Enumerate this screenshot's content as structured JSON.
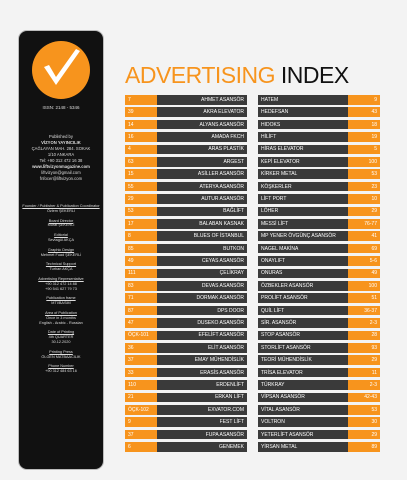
{
  "sidebar": {
    "issn": "ISSN: 2148 - 5346",
    "publisher": [
      "Published by",
      "VİZYON YAYINCILIK",
      "ÇAĞLAYAN MAH. 284. SOKAK",
      "1/10 ANKARA",
      "Tel: +90 312 472 16 38",
      "www.liftvizyonmagazine.com",
      "liftvizyon@gmail.com",
      "fnfocer@liftvizyon.com"
    ],
    "roles": [
      {
        "title": "Founder / Publisher & Publication Coordinator",
        "lines": [
          "Özlem ŞEKERLİ"
        ]
      },
      {
        "title": "Board Director",
        "lines": [
          "Murat ŞEKERLİ"
        ]
      },
      {
        "title": "Editorial",
        "lines": [
          "Sevtagül AKÇA"
        ]
      },
      {
        "title": "Graphic Design",
        "lines": [
          "Mehmet Fuad ŞEKERLİ"
        ]
      },
      {
        "title": "Technical Support",
        "lines": [
          "Turhan AKÇA"
        ]
      },
      {
        "title": "Advertising Representative",
        "lines": [
          "+90 312 472 14 88",
          "+90 541 627 79 73"
        ]
      },
      {
        "title": "Publication frame",
        "lines": [
          "MTİ/BASIM"
        ]
      },
      {
        "title": "Area of Publication",
        "lines": [
          "Once in 3 months",
          "English - Arabic - Russian"
        ]
      },
      {
        "title": "Date of Printing",
        "lines": [
          "4th QUARTER",
          "30.12.2020"
        ]
      },
      {
        "title": "Printing Press",
        "lines": [
          "ÖLGEN MATBAACILIK"
        ]
      },
      {
        "title": "Phone Number",
        "lines": [
          "+90 312 484 63 16"
        ]
      }
    ]
  },
  "header": {
    "title_1": "ADVERTISING",
    "title_2": "INDEX"
  },
  "index": {
    "left": [
      [
        "7",
        "AHMET ASANSÖR"
      ],
      [
        "39",
        "AKRA ELEVATOR"
      ],
      [
        "14",
        "ALYANS ASANSÖR"
      ],
      [
        "16",
        "AMADA FKCH"
      ],
      [
        "4",
        "ARAS PLASTİK"
      ],
      [
        "63",
        "ARGEST"
      ],
      [
        "15",
        "ASİLLER ASANSÖR"
      ],
      [
        "55",
        "ATERYA ASANSÖR"
      ],
      [
        "29",
        "AUTUR ASANSÖR"
      ],
      [
        "53",
        "BAĞLİFT"
      ],
      [
        "17",
        "BALABAN KASNAK"
      ],
      [
        "8",
        "BLUES OF İSTANBUL"
      ],
      [
        "85",
        "BUTKON"
      ],
      [
        "49",
        "CEYAS ASANSÖR"
      ],
      [
        "111",
        "ÇELİKRAY"
      ],
      [
        "83",
        "DEVAS ASANSÖR"
      ],
      [
        "71",
        "DORMAK ASANSÖR"
      ],
      [
        "87",
        "DPS DOOR"
      ],
      [
        "47",
        "DUSEKO ASANSÖR"
      ],
      [
        "ÖÇK-101",
        "EFELİFT ASANSÖR"
      ],
      [
        "36",
        "ELİT ASANSÖR"
      ],
      [
        "37",
        "EMAY MÜHENDİSLİK"
      ],
      [
        "33",
        "ERASİS ASANSÖR"
      ],
      [
        "110",
        "ERDENLİFT"
      ],
      [
        "21",
        "ERKAN LİFT"
      ],
      [
        "ÖÇK-102",
        "EXVATOR.COM"
      ],
      [
        "9",
        "FEST LİFT"
      ],
      [
        "37",
        "FUPA ASANSÖR"
      ],
      [
        "6",
        "GENEMEK"
      ]
    ],
    "right": [
      [
        "HATEM",
        "9"
      ],
      [
        "HEDEFSAN",
        "43"
      ],
      [
        "HIDOKS",
        "18"
      ],
      [
        "HİLİFT",
        "19"
      ],
      [
        "HİRAS ELEVATOR",
        "5"
      ],
      [
        "KEPİ ELEVATOR",
        "100"
      ],
      [
        "KİRKER METAL",
        "53"
      ],
      [
        "KÖŞKERLER",
        "23"
      ],
      [
        "LİFT PORT",
        "10"
      ],
      [
        "LÖHER",
        "29"
      ],
      [
        "MESSİ LİFT",
        "76-77"
      ],
      [
        "MP YENER ÖVGÜNÇ ASANSÖR",
        "41"
      ],
      [
        "NAGEL MAKİNA",
        "69"
      ],
      [
        "ONAYLIFT",
        "5-6"
      ],
      [
        "ONURAS",
        "49"
      ],
      [
        "ÖZBEKLER ASANSÖR",
        "100"
      ],
      [
        "PROLİFT ASANSÖR",
        "51"
      ],
      [
        "QUİL LİFT",
        "36-37"
      ],
      [
        "SİR. ASANSÖR",
        "2-3"
      ],
      [
        "STOP ASANSÖR",
        "28"
      ],
      [
        "STORLİFT ASANSÖR",
        "93"
      ],
      [
        "TEORİ MÜHENDİSLİK",
        "29"
      ],
      [
        "TRİSA ELEVATOR",
        "11"
      ],
      [
        "TÜRKRAY",
        "2-3"
      ],
      [
        "VİPSAN ASANSÖR",
        "42-43"
      ],
      [
        "VİTAL ASANSÖR",
        "53"
      ],
      [
        "VOLTRON",
        "30"
      ],
      [
        "YETERLİFT ASANSÖR",
        "29"
      ],
      [
        "YİRSAN METAL",
        "89"
      ]
    ]
  }
}
